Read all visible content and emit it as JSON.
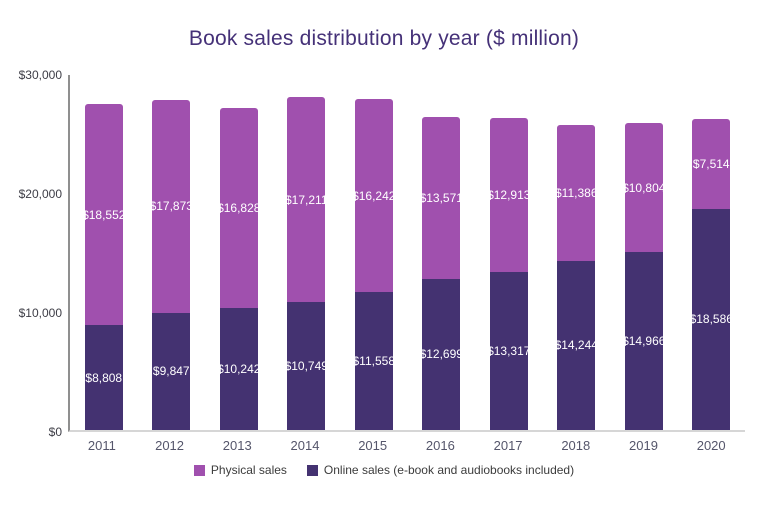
{
  "title": "Book sales distribution by year ($ million)",
  "title_color": "#453178",
  "chart_data": {
    "type": "bar",
    "stacked": true,
    "title": "Book sales distribution by year ($ million)",
    "categories": [
      "2011",
      "2012",
      "2013",
      "2014",
      "2015",
      "2016",
      "2017",
      "2018",
      "2019",
      "2020"
    ],
    "series": [
      {
        "name": "Physical sales",
        "color": "#a050ae",
        "stack_position": "top",
        "values": [
          18552,
          17873,
          16828,
          17211,
          16242,
          13571,
          12913,
          11386,
          10804,
          7514
        ],
        "labels": [
          "$18,552",
          "$17,873",
          "$16,828",
          "$17,211",
          "$16,242",
          "$13,571",
          "$12,913",
          "$11,386",
          "$10,804",
          "$7,514"
        ]
      },
      {
        "name": "Online sales (e-book and audiobooks included)",
        "color": "#443271",
        "stack_position": "bottom",
        "values": [
          8808,
          9847,
          10242,
          10749,
          11558,
          12699,
          13317,
          14244,
          14966,
          18586
        ],
        "labels": [
          "$8,808",
          "$9,847",
          "$10,242",
          "$10,749",
          "$11,558",
          "$12,699",
          "$13,317",
          "$14,244",
          "$14,966",
          "$18,586"
        ]
      }
    ],
    "xlabel": "",
    "ylabel": "",
    "ylim": [
      0,
      30000
    ],
    "yticks": [
      {
        "value": 0,
        "label": "$0"
      },
      {
        "value": 10000,
        "label": "$10,000"
      },
      {
        "value": 20000,
        "label": "$20,000"
      },
      {
        "value": 30000,
        "label": "$30,000"
      }
    ],
    "grid": false,
    "legend_position": "bottom",
    "label_text_color": "#ffffff"
  }
}
